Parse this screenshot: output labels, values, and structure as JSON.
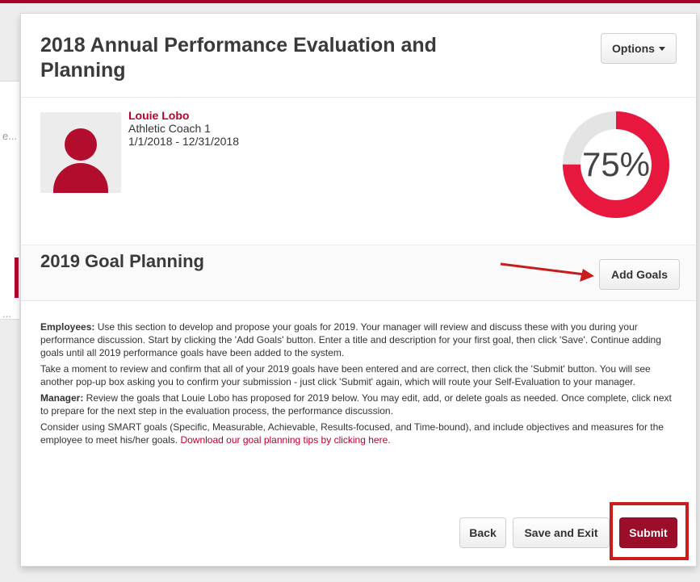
{
  "left_panel": {
    "stub_1": "e...",
    "stub_2": "..."
  },
  "header": {
    "title": "2018 Annual Performance Evaluation and Planning",
    "options_label": "Options"
  },
  "employee": {
    "name": "Louie Lobo",
    "role": "Athletic Coach 1",
    "dates": "1/1/2018 - 12/31/2018"
  },
  "progress": {
    "value": 75,
    "label": "75%"
  },
  "goals": {
    "title": "2019 Goal Planning",
    "add_button": "Add Goals"
  },
  "instructions": {
    "p1_bold": "Employees:",
    "p1_text": " Use this section to develop and propose your goals for 2019.  Your manager will review and discuss these with you during your performance discussion.  Start by clicking the 'Add Goals' button. Enter a title and description for your first goal, then click 'Save'. Continue adding goals until all 2019 performance goals have been added to the system.",
    "p2_text": "Take a moment to review and confirm that all of your 2019 goals have been entered and are correct, then click the  'Submit' button. You will see another pop-up box asking you to confirm your submission - just click 'Submit' again, which will route your Self-Evaluation to your manager.",
    "p3_bold": "Manager:",
    "p3_text": " Review the goals that Louie Lobo has proposed for 2019 below.  You may edit, add, or delete goals as needed.  Once complete, click next to prepare for the next step in the evaluation process, the performance discussion.",
    "p4_text": "Consider using SMART goals (Specific, Measurable, Achievable, Results-focused, and Time-bound), and include objectives and measures for the employee to meet his/her goals.  ",
    "p4_link": "Download our goal planning tips by clicking here."
  },
  "footer": {
    "back_label": "Back",
    "save_exit_label": "Save and Exit",
    "submit_label": "Submit"
  },
  "colors": {
    "accent": "#b8002b",
    "submit_bg": "#9c0d29",
    "gauge_fill": "#e8173e",
    "gauge_track": "#e4e4e4",
    "annotation": "#c91c1c"
  }
}
